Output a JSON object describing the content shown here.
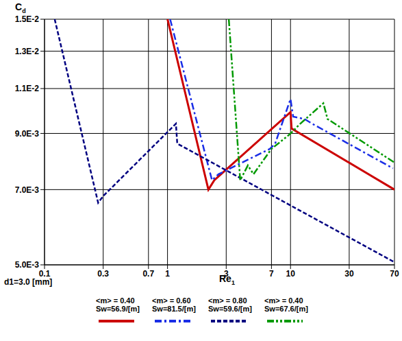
{
  "chart_data": {
    "type": "line",
    "x_label": "Re1",
    "y_label": "Cd",
    "log": true,
    "grid": true,
    "legend": "bottom",
    "xlim": [
      0.1,
      70
    ],
    "ylim": [
      0.005,
      0.015
    ],
    "xticks": [
      0.1,
      0.3,
      0.7,
      1,
      3,
      7,
      10,
      30,
      70
    ],
    "yticks": [
      {
        "value": 0.005,
        "label": "5.0E-3"
      },
      {
        "value": 0.007,
        "label": "7.0E-3"
      },
      {
        "value": 0.009,
        "label": "9.0E-3"
      },
      {
        "value": 0.011,
        "label": "1.1E-2"
      },
      {
        "value": 0.013,
        "label": "1.3E-2"
      },
      {
        "value": 0.015,
        "label": "1.5E-2"
      }
    ],
    "annotations": [
      "d1=3.0 [mm]"
    ],
    "series": [
      {
        "name": "<m> = 0.40 Sw=56.9/[m]",
        "color": "#cc0000",
        "line_style": "solid",
        "x": [
          1.0,
          2.15,
          2.4,
          10,
          10.2,
          70
        ],
        "values": [
          0.015,
          0.007,
          0.0073,
          0.0099,
          0.0092,
          0.007
        ]
      },
      {
        "name": "<m> = 0.60 Sw=81.5/[m]",
        "color": "#1a2ee6",
        "line_style": "dashdot",
        "x": [
          1.05,
          2.3,
          2.6,
          6.8,
          7.5,
          10,
          10.5,
          13,
          15,
          68
        ],
        "values": [
          0.015,
          0.0073,
          0.0075,
          0.0084,
          0.0086,
          0.0105,
          0.0097,
          0.0096,
          0.0094,
          0.0077
        ]
      },
      {
        "name": "<m> = 0.80 Sw=59.6/[m]",
        "color": "#000080",
        "line_style": "dashed",
        "x": [
          0.121,
          0.273,
          0.3,
          1.17,
          1.2,
          70
        ],
        "values": [
          0.015,
          0.0066,
          0.0068,
          0.0094,
          0.0086,
          0.00506
        ]
      },
      {
        "name": "<m> = 0.40 Sw=67.6/[m]",
        "color": "#009900",
        "line_style": "dashdotdot",
        "x": [
          3.15,
          3.9,
          4.5,
          5.0,
          7,
          9.5,
          10.5,
          12,
          18.5,
          20,
          70
        ],
        "values": [
          0.015,
          0.0073,
          0.0078,
          0.0075,
          0.0084,
          0.0089,
          0.0091,
          0.0094,
          0.0103,
          0.0096,
          0.0079
        ]
      }
    ]
  }
}
